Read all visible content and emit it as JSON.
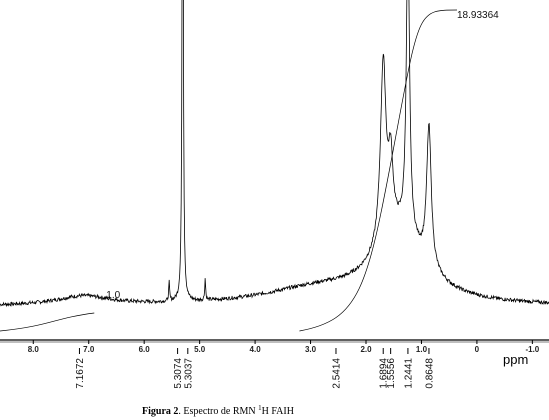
{
  "chart_data": {
    "type": "line",
    "xlabel": "ppm",
    "x_reversed": true,
    "xlim": [
      8.6,
      -1.3
    ],
    "x_ticks": [
      {
        "value": 8.0,
        "label": "8.0"
      },
      {
        "value": 7.0,
        "label": "7.0"
      },
      {
        "value": 6.0,
        "label": "6.0"
      },
      {
        "value": 5.0,
        "label": "5.0"
      },
      {
        "value": 4.0,
        "label": "4.0"
      },
      {
        "value": 3.0,
        "label": "3.0"
      },
      {
        "value": 2.0,
        "label": "2.0"
      },
      {
        "value": 1.0,
        "label": "1.0"
      },
      {
        "value": 0.0,
        "label": "0"
      },
      {
        "value": -1.0,
        "label": "-1.0"
      }
    ],
    "baseline_level": 0.02,
    "peaks": [
      {
        "shift": 5.3074,
        "height": 1.0,
        "width": 0.012
      },
      {
        "shift": 5.3037,
        "height": 0.95,
        "width": 0.012
      },
      {
        "shift": 5.55,
        "height": 0.06,
        "width": 0.01
      },
      {
        "shift": 4.9,
        "height": 0.07,
        "width": 0.01
      },
      {
        "shift": 1.6894,
        "height": 0.58,
        "width": 0.06
      },
      {
        "shift": 1.5556,
        "height": 0.22,
        "width": 0.05
      },
      {
        "shift": 1.2441,
        "height": 0.96,
        "width": 0.035
      },
      {
        "shift": 0.8648,
        "height": 0.45,
        "width": 0.05
      },
      {
        "shift": 1.4,
        "height": 0.22,
        "width": 0.55
      },
      {
        "shift": 2.9,
        "height": 0.05,
        "width": 1.2
      },
      {
        "shift": 7.1,
        "height": 0.03,
        "width": 0.6
      }
    ],
    "peak_labels": [
      {
        "shift": 7.1672,
        "text": "7.1672"
      },
      {
        "shift": 5.3074,
        "text": "5.3074"
      },
      {
        "shift": 5.3037,
        "text": "5.3037"
      },
      {
        "shift": 2.5414,
        "text": "2.5414"
      },
      {
        "shift": 1.6894,
        "text": "1.6894"
      },
      {
        "shift": 1.5556,
        "text": "1.5556"
      },
      {
        "shift": 1.2441,
        "text": "1.2441"
      },
      {
        "shift": 0.8648,
        "text": "0.8648"
      }
    ],
    "integrals": [
      {
        "label": "1.0",
        "from": 8.6,
        "to": 6.9
      },
      {
        "label": "18.93364",
        "from": 3.2,
        "to": 0.9
      }
    ],
    "caption": {
      "bold": "Figura 2",
      "rest": ". Espectro de RMN ",
      "sup": "1",
      "tail": "H FAIH"
    },
    "colors": {
      "spectrum": "#000000",
      "integral": "#000000",
      "axis": "#000000"
    }
  }
}
